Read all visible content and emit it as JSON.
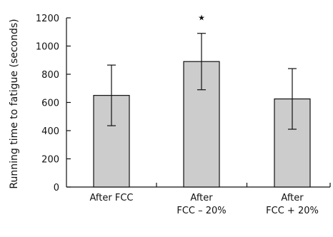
{
  "chart_data": {
    "type": "bar",
    "title": "",
    "xlabel": "",
    "ylabel": "Running time to fatigue (seconds)",
    "ylim": [
      0,
      1200
    ],
    "yticks": [
      0,
      200,
      400,
      600,
      800,
      1000,
      1200
    ],
    "grid": false,
    "categories": [
      [
        "After FCC"
      ],
      [
        "After",
        "FCC – 20%"
      ],
      [
        "After",
        "FCC + 20%"
      ]
    ],
    "values": [
      650,
      890,
      625
    ],
    "error": [
      215,
      200,
      215
    ],
    "annotations": [
      {
        "category_index": 1,
        "text": "★"
      }
    ],
    "colors": {
      "bar_fill": "#cccccc",
      "bar_stroke": "#111111",
      "axis": "#111111"
    }
  }
}
